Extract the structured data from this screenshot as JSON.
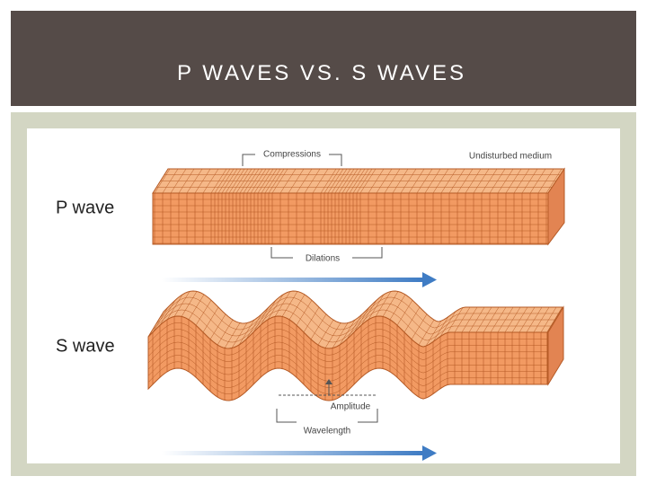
{
  "header": {
    "title": "P WAVES VS. S WAVES"
  },
  "diagram": {
    "p_wave": {
      "label": "P wave",
      "compressions": "Compressions",
      "undisturbed": "Undisturbed medium",
      "dilations": "Dilations"
    },
    "s_wave": {
      "label": "S wave",
      "amplitude": "Amplitude",
      "wavelength": "Wavelength"
    }
  }
}
